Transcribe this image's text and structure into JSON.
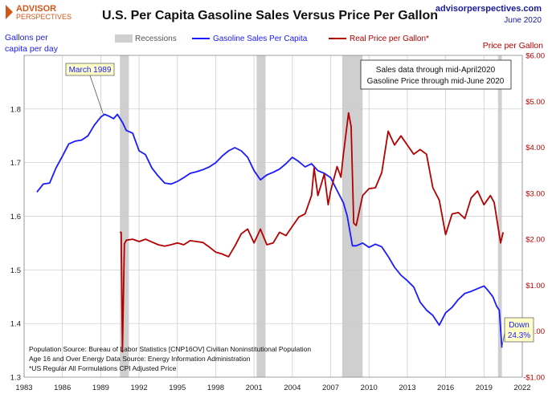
{
  "brand": {
    "line1": "ADVISOR",
    "line2": "PERSPECTIVES"
  },
  "header": {
    "title": "U.S. Per Capita Gasoline Sales Versus Price Per Gallon",
    "site": "advisorperspectives.com",
    "date": "June 2020"
  },
  "colors": {
    "blue": "#1a1aff",
    "red": "#b30000",
    "recession": "#cfcfcf",
    "grid": "#c8c8c8",
    "brand": "#d4561b"
  },
  "chart_data": {
    "type": "line",
    "title": "U.S. Per Capita Gasoline Sales Versus Price Per Gallon",
    "y_left": {
      "label_lines": [
        "Gallons per",
        "capita per day"
      ],
      "range": [
        1.3,
        1.9
      ],
      "ticks": [
        1.3,
        1.4,
        1.5,
        1.6,
        1.7,
        1.8
      ]
    },
    "y_right": {
      "label": "Price per Gallon",
      "range": [
        -1,
        6
      ],
      "ticks": [
        -1,
        0,
        1,
        2,
        3,
        4,
        5,
        6
      ],
      "tick_labels": [
        "-$1.00",
        "$0.00",
        "$1.00",
        "$2.00",
        "$3.00",
        "$4.00",
        "$5.00",
        "$6.00"
      ]
    },
    "x": {
      "range": [
        1983,
        2022
      ],
      "ticks": [
        1983,
        1986,
        1989,
        1992,
        1995,
        1998,
        2001,
        2004,
        2007,
        2010,
        2013,
        2016,
        2019,
        2022
      ]
    },
    "legend": {
      "placement": "top",
      "recessions_label": "Recessions"
    },
    "recessions": [
      [
        1990.5,
        1991.2
      ],
      [
        2001.2,
        2001.9
      ],
      [
        2007.9,
        2009.5
      ],
      [
        2020.1,
        2020.4
      ]
    ],
    "series": [
      {
        "name": "Gasoline Sales Per Capita",
        "axis": "left",
        "color": "#1a1aff",
        "points": [
          [
            1984.0,
            1.645
          ],
          [
            1984.5,
            1.66
          ],
          [
            1985.0,
            1.662
          ],
          [
            1985.5,
            1.69
          ],
          [
            1986.0,
            1.712
          ],
          [
            1986.5,
            1.735
          ],
          [
            1987.0,
            1.74
          ],
          [
            1987.5,
            1.742
          ],
          [
            1988.0,
            1.75
          ],
          [
            1988.5,
            1.77
          ],
          [
            1989.0,
            1.785
          ],
          [
            1989.3,
            1.79
          ],
          [
            1989.7,
            1.786
          ],
          [
            1990.0,
            1.782
          ],
          [
            1990.3,
            1.79
          ],
          [
            1990.7,
            1.775
          ],
          [
            1991.0,
            1.76
          ],
          [
            1991.5,
            1.755
          ],
          [
            1992.0,
            1.722
          ],
          [
            1992.5,
            1.715
          ],
          [
            1993.0,
            1.69
          ],
          [
            1993.5,
            1.675
          ],
          [
            1994.0,
            1.662
          ],
          [
            1994.5,
            1.66
          ],
          [
            1995.0,
            1.665
          ],
          [
            1995.5,
            1.672
          ],
          [
            1996.0,
            1.68
          ],
          [
            1996.5,
            1.683
          ],
          [
            1997.0,
            1.687
          ],
          [
            1997.5,
            1.692
          ],
          [
            1998.0,
            1.7
          ],
          [
            1998.5,
            1.712
          ],
          [
            1999.0,
            1.722
          ],
          [
            1999.5,
            1.728
          ],
          [
            2000.0,
            1.722
          ],
          [
            2000.5,
            1.71
          ],
          [
            2001.0,
            1.685
          ],
          [
            2001.5,
            1.668
          ],
          [
            2002.0,
            1.677
          ],
          [
            2002.5,
            1.682
          ],
          [
            2003.0,
            1.688
          ],
          [
            2003.5,
            1.698
          ],
          [
            2004.0,
            1.71
          ],
          [
            2004.5,
            1.702
          ],
          [
            2005.0,
            1.692
          ],
          [
            2005.5,
            1.698
          ],
          [
            2006.0,
            1.685
          ],
          [
            2006.5,
            1.68
          ],
          [
            2007.0,
            1.672
          ],
          [
            2007.5,
            1.648
          ],
          [
            2008.0,
            1.625
          ],
          [
            2008.3,
            1.6
          ],
          [
            2008.7,
            1.545
          ],
          [
            2009.0,
            1.545
          ],
          [
            2009.5,
            1.55
          ],
          [
            2010.0,
            1.542
          ],
          [
            2010.5,
            1.548
          ],
          [
            2011.0,
            1.543
          ],
          [
            2011.5,
            1.525
          ],
          [
            2012.0,
            1.505
          ],
          [
            2012.5,
            1.49
          ],
          [
            2013.0,
            1.48
          ],
          [
            2013.5,
            1.468
          ],
          [
            2014.0,
            1.44
          ],
          [
            2014.5,
            1.425
          ],
          [
            2015.0,
            1.415
          ],
          [
            2015.5,
            1.397
          ],
          [
            2016.0,
            1.42
          ],
          [
            2016.5,
            1.43
          ],
          [
            2017.0,
            1.445
          ],
          [
            2017.5,
            1.456
          ],
          [
            2018.0,
            1.46
          ],
          [
            2018.5,
            1.465
          ],
          [
            2019.0,
            1.47
          ],
          [
            2019.3,
            1.462
          ],
          [
            2019.7,
            1.45
          ],
          [
            2020.0,
            1.432
          ],
          [
            2020.2,
            1.425
          ],
          [
            2020.4,
            1.355
          ]
        ]
      },
      {
        "name": "Real Price per Gallon*",
        "axis": "right",
        "color": "#b30000",
        "points": [
          [
            1990.5,
            2.15
          ],
          [
            1990.6,
            2.15
          ],
          [
            1990.7,
            -0.45
          ],
          [
            1990.85,
            1.9
          ],
          [
            1991.0,
            1.98
          ],
          [
            1991.5,
            2.0
          ],
          [
            1992.0,
            1.95
          ],
          [
            1992.5,
            2.0
          ],
          [
            1993.0,
            1.94
          ],
          [
            1993.5,
            1.88
          ],
          [
            1994.0,
            1.85
          ],
          [
            1994.5,
            1.88
          ],
          [
            1995.0,
            1.92
          ],
          [
            1995.5,
            1.88
          ],
          [
            1996.0,
            1.97
          ],
          [
            1996.5,
            1.95
          ],
          [
            1997.0,
            1.93
          ],
          [
            1997.5,
            1.83
          ],
          [
            1998.0,
            1.72
          ],
          [
            1998.5,
            1.68
          ],
          [
            1999.0,
            1.62
          ],
          [
            1999.5,
            1.85
          ],
          [
            2000.0,
            2.12
          ],
          [
            2000.5,
            2.22
          ],
          [
            2001.0,
            1.92
          ],
          [
            2001.5,
            2.22
          ],
          [
            2002.0,
            1.88
          ],
          [
            2002.5,
            1.92
          ],
          [
            2003.0,
            2.15
          ],
          [
            2003.5,
            2.08
          ],
          [
            2004.0,
            2.28
          ],
          [
            2004.5,
            2.48
          ],
          [
            2005.0,
            2.55
          ],
          [
            2005.5,
            2.95
          ],
          [
            2005.7,
            3.55
          ],
          [
            2006.0,
            2.95
          ],
          [
            2006.5,
            3.42
          ],
          [
            2006.8,
            2.75
          ],
          [
            2007.0,
            3.05
          ],
          [
            2007.5,
            3.58
          ],
          [
            2007.8,
            3.35
          ],
          [
            2008.0,
            3.85
          ],
          [
            2008.4,
            4.75
          ],
          [
            2008.6,
            4.45
          ],
          [
            2008.8,
            2.35
          ],
          [
            2009.0,
            2.3
          ],
          [
            2009.5,
            2.95
          ],
          [
            2010.0,
            3.1
          ],
          [
            2010.5,
            3.12
          ],
          [
            2011.0,
            3.45
          ],
          [
            2011.5,
            4.35
          ],
          [
            2012.0,
            4.05
          ],
          [
            2012.5,
            4.25
          ],
          [
            2013.0,
            4.05
          ],
          [
            2013.5,
            3.85
          ],
          [
            2014.0,
            3.95
          ],
          [
            2014.5,
            3.85
          ],
          [
            2015.0,
            3.12
          ],
          [
            2015.5,
            2.85
          ],
          [
            2016.0,
            2.1
          ],
          [
            2016.5,
            2.55
          ],
          [
            2017.0,
            2.58
          ],
          [
            2017.5,
            2.45
          ],
          [
            2018.0,
            2.9
          ],
          [
            2018.5,
            3.05
          ],
          [
            2019.0,
            2.75
          ],
          [
            2019.5,
            2.95
          ],
          [
            2019.8,
            2.8
          ],
          [
            2020.0,
            2.45
          ],
          [
            2020.3,
            1.92
          ],
          [
            2020.5,
            2.15
          ]
        ]
      }
    ],
    "annotations": {
      "peak": {
        "text": "March 1989",
        "x": 1989.2,
        "y": 1.79
      },
      "down_lines": [
        "Down",
        "24.3%"
      ],
      "note_lines": [
        "Sales data through mid-April2020",
        "Gasoline Price through mid-June 2020"
      ],
      "sources": [
        "Population Source: Bureau of Labor Statistics [CNP16OV] Civilian Noninstitutional Population",
        "Age 16 and Over Energy Data Source: Energy Information Administration",
        "*US Regular All Formulations CPI Adjusted Price"
      ]
    }
  }
}
